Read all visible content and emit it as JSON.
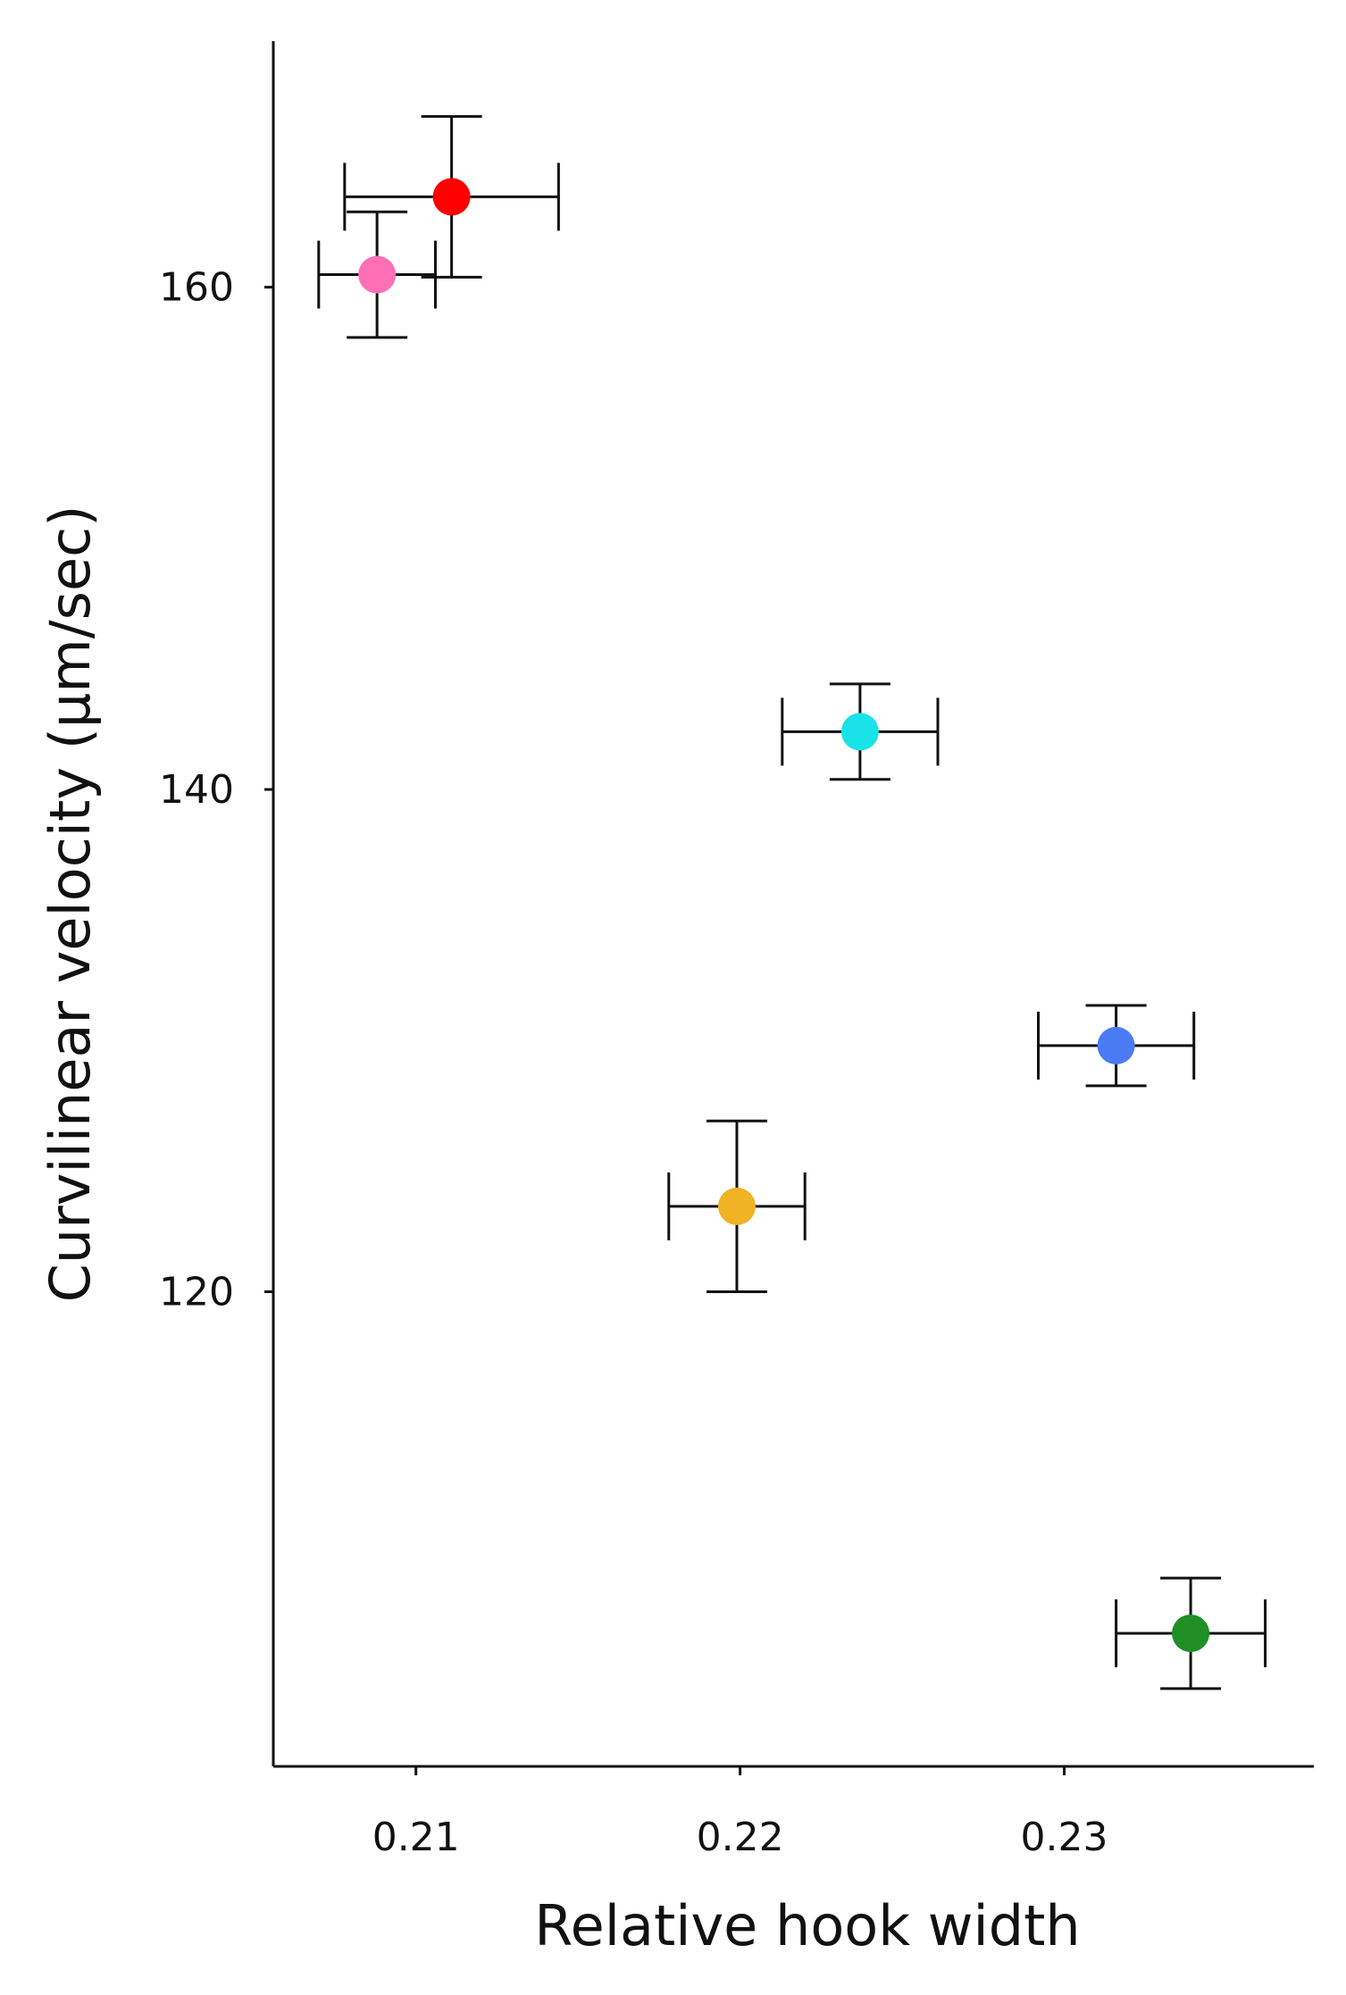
{
  "chart_data": {
    "type": "scatter",
    "x_label": "Relative hook width",
    "y_label": "Curvilinear velocity (μm/sec)",
    "x": [
      0.2111,
      0.2088,
      0.2237,
      0.2316,
      0.2199,
      0.2339
    ],
    "y": [
      163.6,
      160.5,
      142.3,
      129.8,
      123.4,
      106.4
    ],
    "xerr": [
      0.0033,
      0.0018,
      0.0024,
      0.0024,
      0.0021,
      0.0023
    ],
    "yerr": [
      3.2,
      2.5,
      1.9,
      1.6,
      3.4,
      2.2
    ],
    "colors": [
      "#ff0000",
      "#ff6fb5",
      "#19e3e8",
      "#4a7bf5",
      "#f0b323",
      "#1f8f26"
    ],
    "xlim": [
      0.2056,
      0.2377
    ],
    "ylim": [
      101.1,
      169.8
    ],
    "xticks": [
      0.21,
      0.22,
      0.23
    ],
    "yticks": [
      120,
      140,
      160
    ]
  }
}
